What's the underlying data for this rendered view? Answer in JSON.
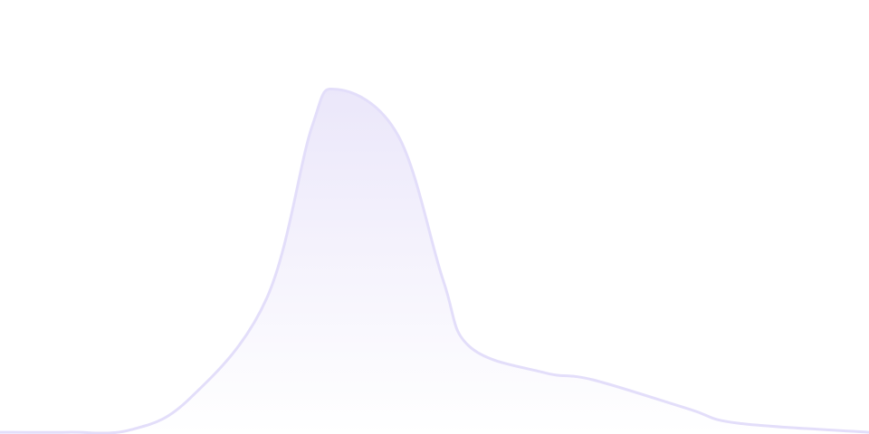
{
  "chart_data": {
    "type": "area",
    "title": "",
    "xlabel": "",
    "ylabel": "",
    "xlim": [
      0,
      100
    ],
    "ylim": [
      0,
      100
    ],
    "grid": false,
    "axes_visible": false,
    "x": [
      0,
      7.8,
      15.1,
      21.9,
      30.7,
      35.9,
      38.8,
      45.8,
      51,
      54,
      62.5,
      68.2,
      79.2,
      84.9,
      100
    ],
    "series": [
      {
        "values": [
          0.4,
          0.4,
          1,
          8.3,
          31.3,
          70.8,
          79.4,
          68.8,
          35.4,
          20.2,
          14.2,
          12.5,
          5.8,
          2.5,
          0.4
        ]
      }
    ],
    "colors": {
      "stroke": "#e3defa",
      "fill_top": "#ebe7fa",
      "fill_bottom": "#ffffff"
    }
  }
}
